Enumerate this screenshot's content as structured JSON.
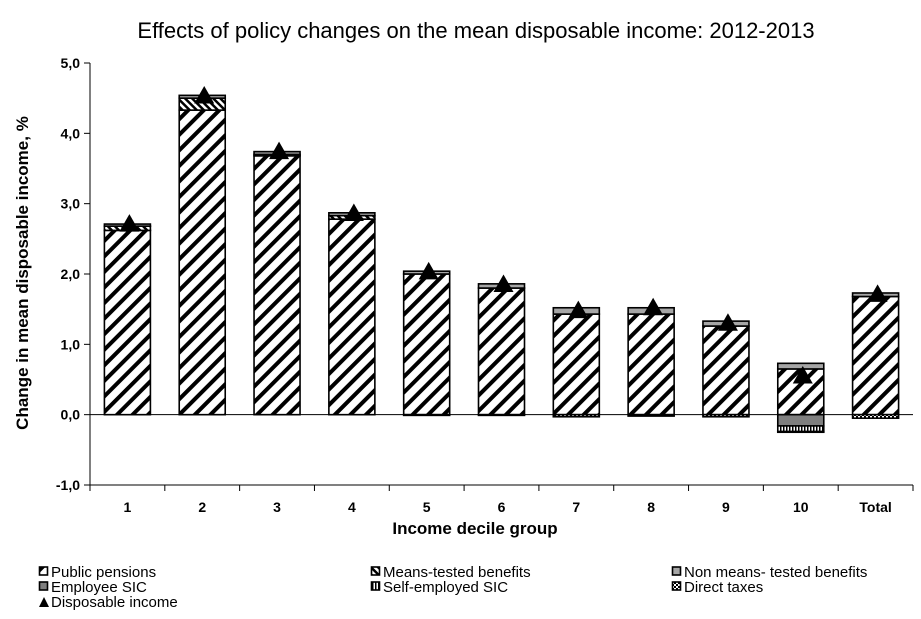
{
  "chart_data": {
    "type": "bar",
    "stacked": true,
    "title": "Effects of policy changes on the mean disposable income: 2012-2013",
    "xlabel": "Income decile group",
    "ylabel": "Change in mean disposable income, %",
    "ylim": [
      -1.0,
      5.0
    ],
    "yticks": [
      -1.0,
      0.0,
      1.0,
      2.0,
      3.0,
      4.0,
      5.0
    ],
    "ytick_labels": [
      "-1,0",
      "0,0",
      "1,0",
      "2,0",
      "3,0",
      "4,0",
      "5,0"
    ],
    "grid": false,
    "legend_position": "bottom",
    "categories": [
      "1",
      "2",
      "3",
      "4",
      "5",
      "6",
      "7",
      "8",
      "9",
      "10",
      "Total"
    ],
    "series": [
      {
        "name": "Public pensions",
        "values": [
          2.62,
          4.33,
          3.68,
          2.78,
          2.0,
          1.8,
          1.43,
          1.43,
          1.26,
          0.65,
          1.68
        ],
        "color": "#000000"
      },
      {
        "name": "Means-tested benefits",
        "values": [
          0.06,
          0.17,
          0.02,
          0.05,
          0.0,
          0.0,
          0.0,
          0.0,
          0.0,
          0.0,
          0.0
        ],
        "color": "#000000"
      },
      {
        "name": "Non means- tested benefits",
        "values": [
          0.03,
          0.04,
          0.04,
          0.04,
          0.04,
          0.06,
          0.09,
          0.09,
          0.07,
          0.08,
          0.05
        ],
        "color": "#a6a6a6"
      },
      {
        "name": "Employee SIC",
        "values": [
          0.0,
          0.0,
          0.0,
          0.0,
          0.0,
          0.0,
          0.0,
          0.0,
          0.0,
          -0.16,
          0.0
        ],
        "color": "#7f7f7f"
      },
      {
        "name": "Self-employed SIC",
        "values": [
          0.0,
          0.0,
          0.0,
          0.0,
          0.0,
          0.0,
          0.0,
          0.0,
          0.0,
          -0.08,
          0.0
        ],
        "color": "#000000"
      },
      {
        "name": "Direct taxes",
        "values": [
          0.0,
          0.0,
          0.0,
          0.0,
          -0.01,
          -0.01,
          -0.03,
          -0.02,
          -0.03,
          -0.01,
          -0.05
        ],
        "color": "#000000"
      },
      {
        "name": "Disposable income",
        "type": "marker",
        "values": [
          2.71,
          4.53,
          3.74,
          2.86,
          2.03,
          1.85,
          1.48,
          1.52,
          1.3,
          0.55,
          1.71
        ],
        "color": "#000000"
      }
    ]
  }
}
